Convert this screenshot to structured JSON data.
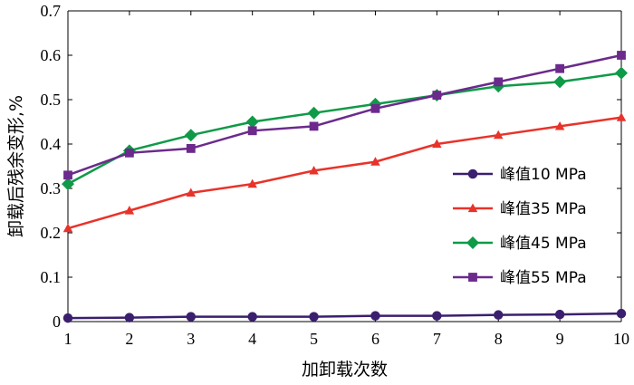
{
  "chart_data": {
    "type": "line",
    "xlabel": "加卸载次数",
    "ylabel": "卸载后残余变形,%",
    "x": [
      1,
      2,
      3,
      4,
      5,
      6,
      7,
      8,
      9,
      10
    ],
    "xlim": [
      1,
      10
    ],
    "ylim": [
      0,
      0.7
    ],
    "x_ticks": [
      "1",
      "2",
      "3",
      "4",
      "5",
      "6",
      "7",
      "8",
      "9",
      "10"
    ],
    "y_ticks": [
      "0",
      "0.1",
      "0.2",
      "0.3",
      "0.4",
      "0.5",
      "0.6",
      "0.7"
    ],
    "grid": false,
    "legend_position": "right-middle",
    "series": [
      {
        "name": "峰值10 MPa",
        "color": "#3b1f6e",
        "marker": "circle",
        "values": [
          0.008,
          0.009,
          0.011,
          0.011,
          0.011,
          0.013,
          0.013,
          0.015,
          0.016,
          0.018
        ]
      },
      {
        "name": "峰值35 MPa",
        "color": "#e8332a",
        "marker": "triangle",
        "values": [
          0.21,
          0.25,
          0.29,
          0.31,
          0.34,
          0.36,
          0.4,
          0.42,
          0.44,
          0.46
        ]
      },
      {
        "name": "峰值45 MPa",
        "color": "#0f9a48",
        "marker": "diamond",
        "values": [
          0.31,
          0.385,
          0.42,
          0.45,
          0.47,
          0.49,
          0.51,
          0.53,
          0.54,
          0.56
        ]
      },
      {
        "name": "峰值55 MPa",
        "color": "#6b2a8c",
        "marker": "square",
        "values": [
          0.33,
          0.38,
          0.39,
          0.43,
          0.44,
          0.48,
          0.51,
          0.54,
          0.57,
          0.6
        ]
      }
    ]
  }
}
